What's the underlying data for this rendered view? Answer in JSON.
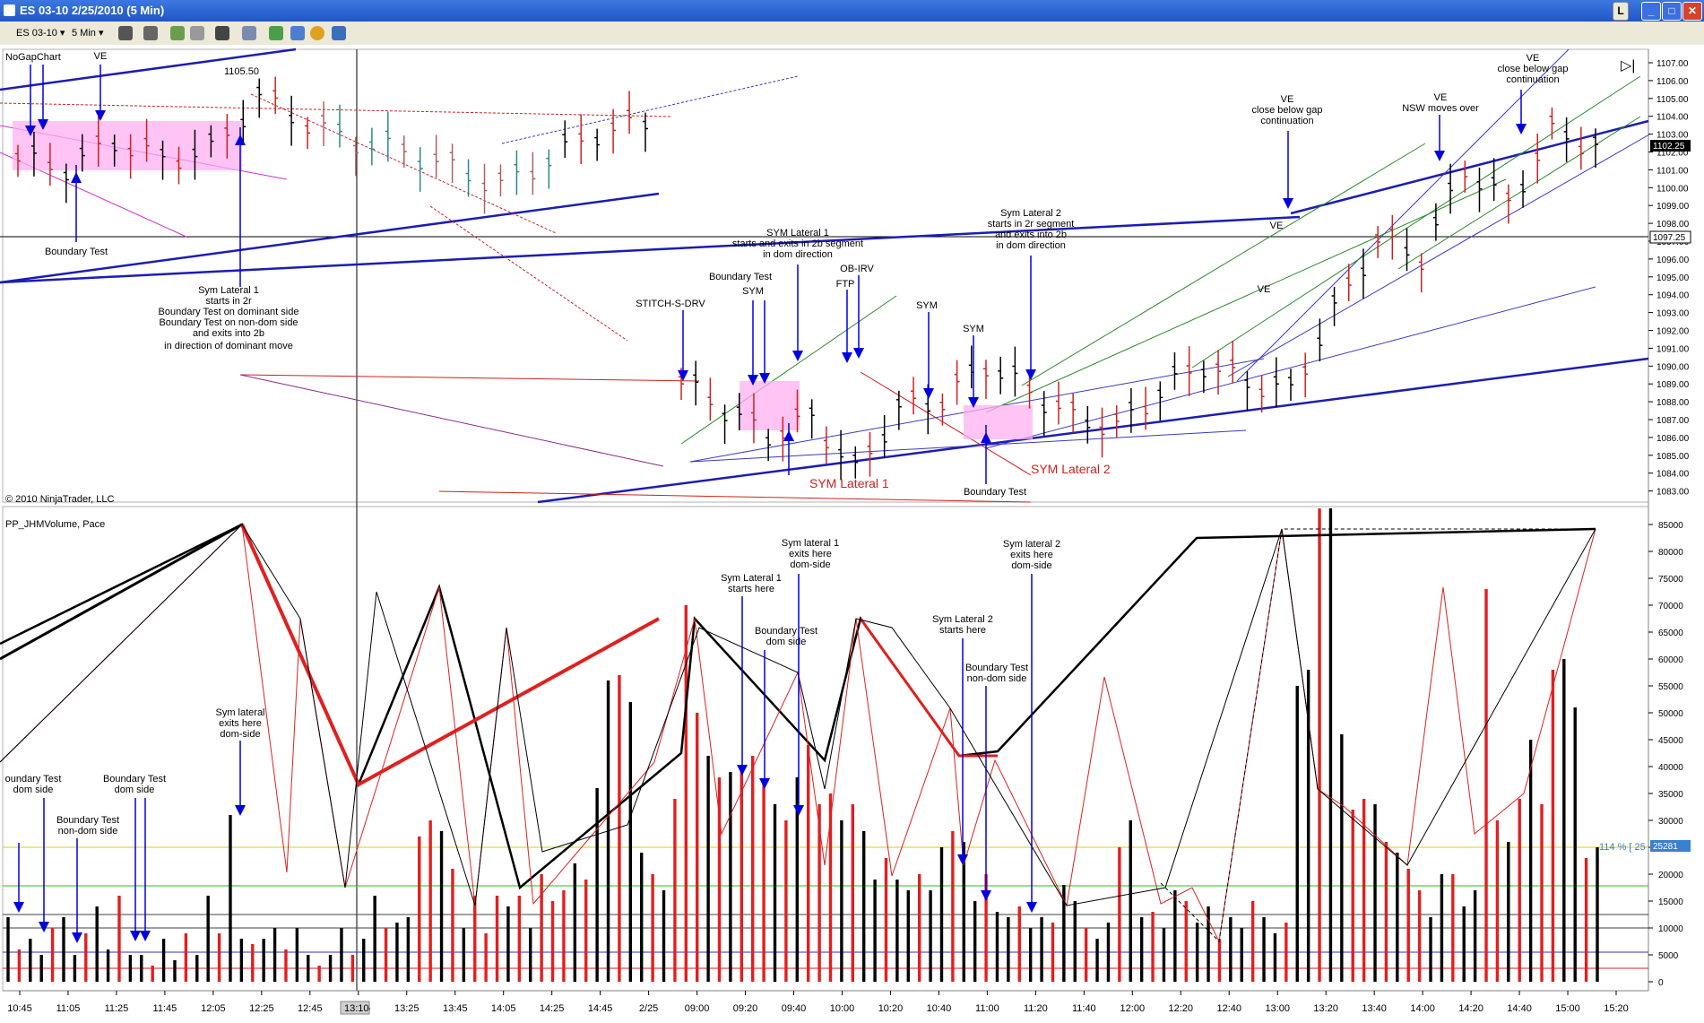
{
  "window": {
    "title": "ES 03-10  2/25/2010 (5 Min)",
    "tag": "L"
  },
  "toolbar": {
    "instrument": "ES 03-10",
    "interval": "5 Min"
  },
  "price_panel": {
    "label": "NoGapChart",
    "copyright": "© 2010 NinjaTrader, LLC",
    "current_price": "1102.25",
    "marked_price": "1097.25",
    "high_label": "1105.50",
    "ticks": [
      "1107.00",
      "1106.00",
      "1105.00",
      "1104.00",
      "1103.00",
      "1102.00",
      "1101.00",
      "1100.00",
      "1099.00",
      "1098.00",
      "1097.00",
      "1096.00",
      "1095.00",
      "1094.00",
      "1093.00",
      "1092.00",
      "1091.00",
      "1090.00",
      "1089.00",
      "1088.00",
      "1087.00",
      "1086.00",
      "1085.00",
      "1084.00",
      "1083.00"
    ]
  },
  "volume_panel": {
    "label": "PP_JHMVolume, Pace",
    "pace": "114 % [ 25",
    "current_volume": "25281",
    "ticks": [
      "85000",
      "80000",
      "75000",
      "70000",
      "65000",
      "60000",
      "55000",
      "50000",
      "45000",
      "40000",
      "35000",
      "30000",
      "25000",
      "20000",
      "15000",
      "10000",
      "5000",
      "0"
    ]
  },
  "time_axis": {
    "labels": [
      "10:45",
      "11:05",
      "11:25",
      "11:45",
      "12:05",
      "12:25",
      "12:45",
      "13:05",
      "13:25",
      "13:45",
      "14:05",
      "14:25",
      "14:45",
      "2/25",
      "09:00",
      "09:20",
      "09:40",
      "10:00",
      "10:20",
      "10:40",
      "11:00",
      "11:20",
      "11:40",
      "12:00",
      "12:20",
      "12:40",
      "13:00",
      "13:20",
      "13:40",
      "14:00",
      "14:20",
      "14:40",
      "15:00",
      "15:20"
    ],
    "cursor": "13:10"
  },
  "annotations": {
    "ve1": "VE",
    "ve2": "VE",
    "ve3": "VE",
    "ve3b": "close below gap",
    "ve3c": "continuation",
    "ve4": "VE",
    "ve4b": "NSW moves over",
    "ve5": "VE",
    "ve5b": "close below gap",
    "ve5c": "continuation",
    "ve6": "VE",
    "bt1": "Boundary Test",
    "sl1_a": "Sym Lateral 1",
    "sl1_b": "starts in 2r",
    "sl1_c": "Boundary Test on dominant side",
    "sl1_d": "Boundary Test on non-dom side",
    "sl1_e": "and exits into 2b",
    "sl1_f": "in direction of dominant move",
    "stitch": "STITCH-S-DRV",
    "bt2": "Boundary Test",
    "sym1": "SYM",
    "syml1_a": "SYM Lateral 1",
    "syml1_b": "starts and exits in 2b segment",
    "syml1_c": "in dom direction",
    "obirv": "OB-IRV",
    "ftp": "FTP",
    "sym2": "SYM",
    "sym3": "SYM",
    "syml2_a": "Sym Lateral 2",
    "syml2_b": "starts in 2r segment",
    "syml2_c": "and exits into 2b",
    "syml2_d": "in dom direction",
    "red_sl1": "SYM Lateral 1",
    "red_sl2": "SYM Lateral 2",
    "bt3": "Boundary Test"
  },
  "volume_annotations": {
    "a1": "oundary Test",
    "a1b": "dom side",
    "a2": "Boundary Test",
    "a2b": "non-dom side",
    "a3": "Boundary Test",
    "a3b": "dom side",
    "a4": "Sym lateral",
    "a4b": "exits here",
    "a4c": "dom-side",
    "a5": "Sym Lateral 1",
    "a5b": "starts here",
    "a6": "Sym lateral 1",
    "a6b": "exits here",
    "a6c": "dom-side",
    "a7": "Boundary Test",
    "a7b": "dom side",
    "a8": "Sym Lateral 2",
    "a8b": "starts here",
    "a9": "Sym lateral 2",
    "a9b": "exits here",
    "a9c": "dom-side",
    "a10": "Boundary Test",
    "a10b": "non-dom side"
  },
  "chart_data": [
    {
      "type": "ohlc",
      "title": "ES 03-10  2/25/2010 (5 Min)",
      "ylim": [
        1082.5,
        1107.5
      ],
      "series": [
        {
          "name": "ES 03-10",
          "approx_closes": [
            1101.5,
            1101.0,
            1102.5,
            1101.5,
            1102.0,
            1105.0,
            1103.5,
            1102.5,
            1102.0,
            1101.0,
            1100.0,
            1101.5,
            1103.0,
            1103.5,
            1089.0,
            1087.5,
            1086.0,
            1087.0,
            1084.0,
            1087.5,
            1088.0,
            1090.0,
            1088.5,
            1087.0,
            1086.5,
            1088.5,
            1090.0,
            1089.0,
            1088.5,
            1093.0,
            1097.0,
            1096.0,
            1101.0,
            1099.0,
            1103.0,
            1102.25
          ]
        }
      ]
    },
    {
      "type": "bar",
      "title": "PP_JHMVolume, Pace",
      "ylim": [
        0,
        88000
      ],
      "series": [
        {
          "name": "Volume",
          "values": [
            12000,
            6000,
            8000,
            5000,
            10000,
            12000,
            5000,
            9000,
            14000,
            6000,
            16000,
            5000,
            5000,
            3000,
            8000,
            4000,
            9000,
            5000,
            16000,
            9000,
            31000,
            8000,
            7000,
            8000,
            10000,
            6000,
            10000,
            5000,
            3000,
            5000,
            10000,
            5000,
            8000,
            16000,
            10000,
            11000,
            12000,
            27000,
            30000,
            28000,
            21000,
            10000,
            16000,
            9000,
            16000,
            14000,
            16000,
            10000,
            20000,
            15000,
            17000,
            22000,
            19000,
            36000,
            56000,
            57000,
            52000,
            24000,
            20000,
            17000,
            34000,
            70000,
            50000,
            42000,
            38000,
            39000,
            40000,
            42000,
            37000,
            33000,
            30000,
            38000,
            44000,
            33000,
            35000,
            30000,
            33000,
            28000,
            19000,
            23000,
            19000,
            17000,
            20000,
            17000,
            25000,
            28000,
            26000,
            15000,
            20000,
            13000,
            12000,
            14000,
            10000,
            12000,
            11000,
            18000,
            15000,
            10000,
            8000,
            11000,
            25000,
            30000,
            12000,
            13000,
            10000,
            17000,
            15000,
            11000,
            14000,
            8000,
            12000,
            10000,
            15000,
            12000,
            9000,
            11000,
            55000,
            58000,
            88000,
            88000,
            46000,
            32000,
            34000,
            33000,
            26000,
            24000,
            21000,
            17000,
            12000,
            20000,
            20000,
            14000,
            17000,
            73000,
            30000,
            26000,
            34000,
            45000,
            33000,
            58000,
            60000,
            51000,
            23000,
            25000
          ]
        }
      ]
    }
  ]
}
